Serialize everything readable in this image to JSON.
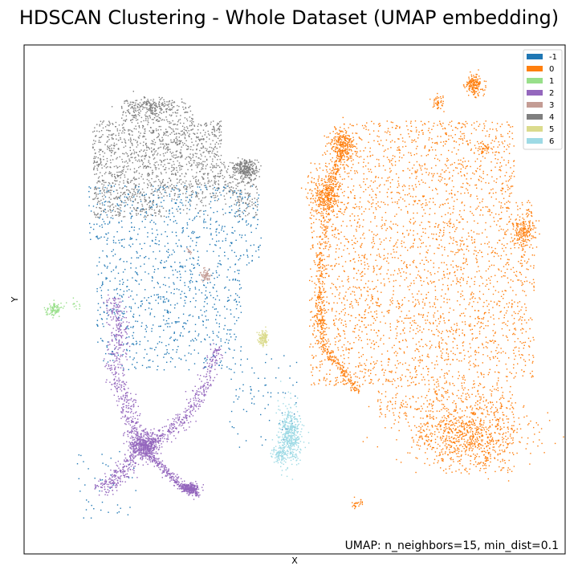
{
  "chart_data": {
    "type": "scatter",
    "title": "HDSCAN Clustering - Whole Dataset (UMAP embedding)",
    "xlabel": "X",
    "ylabel": "Y",
    "annotation": "UMAP: n_neighbors=15, min_dist=0.1",
    "legend_position": "top-right",
    "grid": false,
    "axis_ticks": false,
    "xlim": [
      0,
      1
    ],
    "ylim": [
      0,
      1
    ],
    "series": [
      {
        "name": "-1",
        "color": "#1f77b4"
      },
      {
        "name": "0",
        "color": "#ff7f0e"
      },
      {
        "name": "1",
        "color": "#98df8a"
      },
      {
        "name": "2",
        "color": "#9467bd"
      },
      {
        "name": "3",
        "color": "#c49c94"
      },
      {
        "name": "4",
        "color": "#7f7f7f"
      },
      {
        "name": "5",
        "color": "#dbdb8d"
      },
      {
        "name": "6",
        "color": "#9edae5"
      }
    ]
  }
}
